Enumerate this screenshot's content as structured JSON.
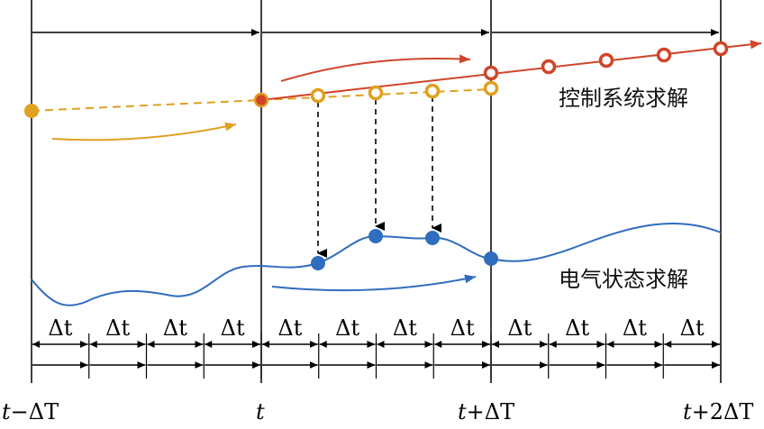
{
  "labels": {
    "control": "控制系统求解",
    "electric": "电气状态求解",
    "dt": "Δt"
  },
  "time_labels": [
    {
      "pre": "t",
      "post": "−ΔT"
    },
    {
      "pre": "t",
      "post": ""
    },
    {
      "pre": "t",
      "post": "+ΔT"
    },
    {
      "pre": "t",
      "post": "+2ΔT"
    }
  ],
  "colors": {
    "orange": "#E0A020",
    "red": "#D0452A",
    "blue": "#2F6DBE",
    "black": "#000000"
  },
  "dt_count": 12
}
